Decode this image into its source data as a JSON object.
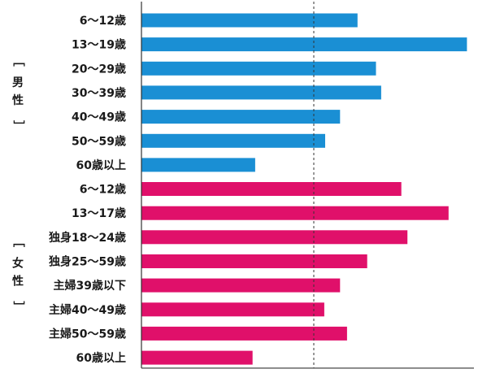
{
  "chart_data": {
    "type": "bar",
    "orientation": "horizontal",
    "title": "",
    "xlabel": "",
    "ylabel": "",
    "grid": false,
    "groups": [
      {
        "label": "男性",
        "bracket_open": "［",
        "bracket_close": "］",
        "color": "#1a8fd4",
        "categories": [
          "6〜12歳",
          "13〜19歳",
          "20〜29歳",
          "30〜39歳",
          "40〜49歳",
          "50〜59歳",
          "60歳以上"
        ],
        "values": [
          247,
          372,
          268,
          274,
          227,
          210,
          130
        ]
      },
      {
        "label": "女性",
        "bracket_open": "［",
        "bracket_close": "］",
        "color": "#e0106a",
        "categories": [
          "6〜12歳",
          "13〜17歳",
          "独身18〜24歳",
          "独身25〜59歳",
          "主婦39歳以下",
          "主婦40〜49歳",
          "主婦50〜59歳",
          "60歳以上"
        ],
        "values": [
          297,
          351,
          304,
          258,
          227,
          209,
          235,
          127
        ]
      }
    ],
    "xlim": [
      0,
      380
    ],
    "reference_line": 197
  }
}
